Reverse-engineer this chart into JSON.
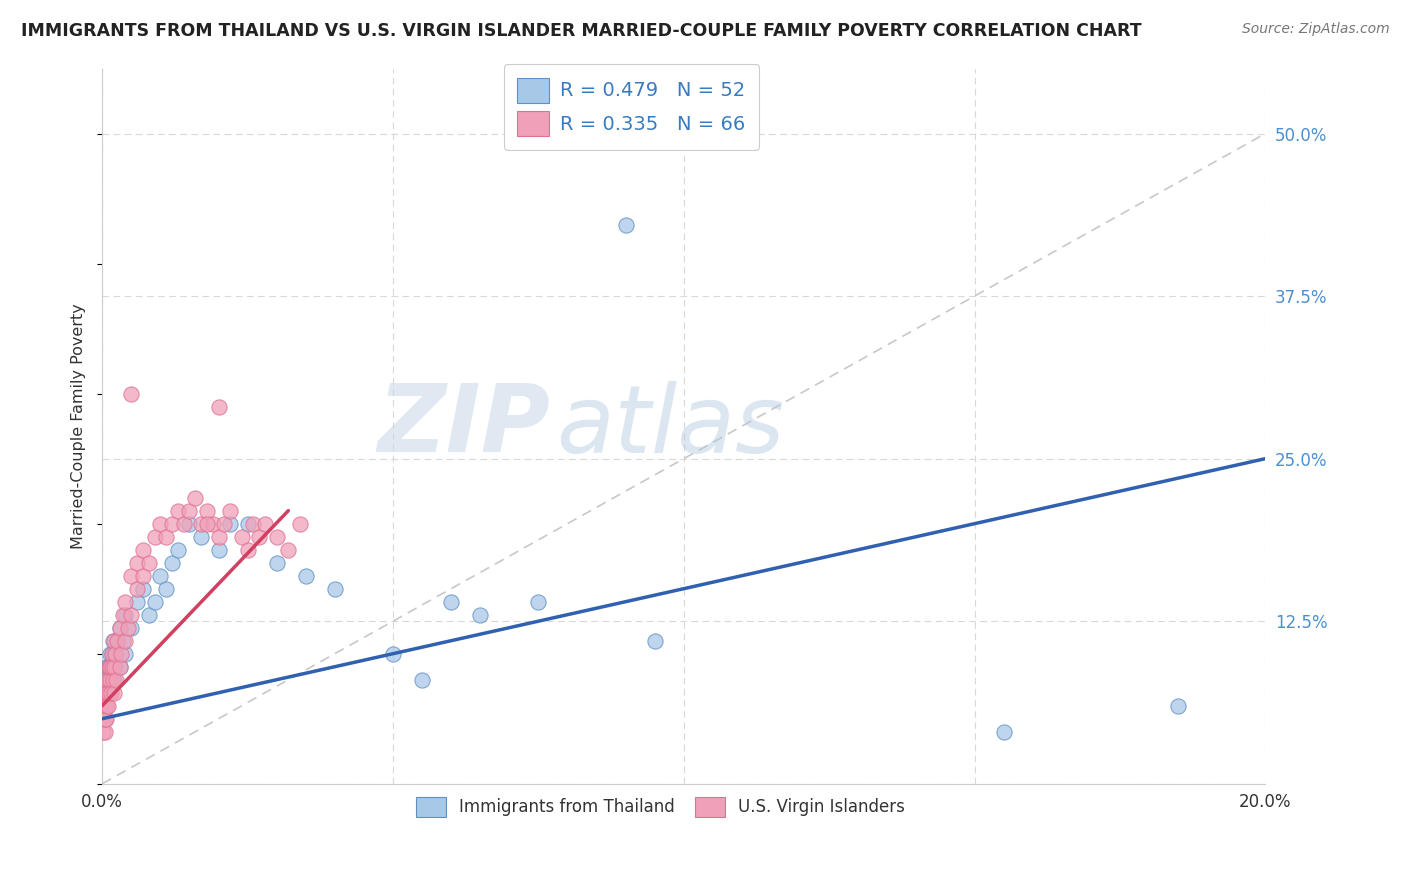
{
  "title": "IMMIGRANTS FROM THAILAND VS U.S. VIRGIN ISLANDER MARRIED-COUPLE FAMILY POVERTY CORRELATION CHART",
  "source": "Source: ZipAtlas.com",
  "ylabel": "Married-Couple Family Poverty",
  "xlim": [
    0.0,
    0.2
  ],
  "ylim": [
    0.0,
    0.55
  ],
  "grid_color": "#d8d8d8",
  "blue_color": "#a8c8e8",
  "pink_color": "#f0a0b8",
  "blue_edge_color": "#6090c0",
  "pink_edge_color": "#e07090",
  "blue_line_color": "#3060b0",
  "pink_line_color": "#d04060",
  "ref_line_color": "#c8c8c8",
  "watermark_zip": "ZIP",
  "watermark_atlas": "atlas",
  "legend_label_1": "Immigrants from Thailand",
  "legend_label_2": "U.S. Virgin Islanders",
  "blue_scatter_x": [
    0.0003,
    0.0004,
    0.0005,
    0.0006,
    0.0007,
    0.0008,
    0.0009,
    0.001,
    0.001,
    0.0012,
    0.0013,
    0.0014,
    0.0015,
    0.0016,
    0.0017,
    0.0018,
    0.002,
    0.002,
    0.0022,
    0.0024,
    0.0025,
    0.003,
    0.003,
    0.0035,
    0.004,
    0.004,
    0.005,
    0.006,
    0.007,
    0.008,
    0.009,
    0.01,
    0.011,
    0.012,
    0.013,
    0.015,
    0.017,
    0.02,
    0.022,
    0.025,
    0.03,
    0.035,
    0.04,
    0.05,
    0.055,
    0.06,
    0.065,
    0.075,
    0.09,
    0.095,
    0.155,
    0.185
  ],
  "blue_scatter_y": [
    0.06,
    0.07,
    0.05,
    0.08,
    0.09,
    0.07,
    0.08,
    0.07,
    0.09,
    0.08,
    0.1,
    0.09,
    0.08,
    0.1,
    0.09,
    0.11,
    0.08,
    0.1,
    0.09,
    0.1,
    0.11,
    0.09,
    0.12,
    0.11,
    0.1,
    0.13,
    0.12,
    0.14,
    0.15,
    0.13,
    0.14,
    0.16,
    0.15,
    0.17,
    0.18,
    0.2,
    0.19,
    0.18,
    0.2,
    0.2,
    0.17,
    0.16,
    0.15,
    0.1,
    0.08,
    0.14,
    0.13,
    0.14,
    0.43,
    0.11,
    0.04,
    0.06
  ],
  "pink_scatter_x": [
    0.0002,
    0.0003,
    0.0003,
    0.0004,
    0.0005,
    0.0005,
    0.0006,
    0.0007,
    0.0007,
    0.0008,
    0.0009,
    0.001,
    0.001,
    0.0011,
    0.0012,
    0.0013,
    0.0014,
    0.0015,
    0.0016,
    0.0017,
    0.0018,
    0.002,
    0.002,
    0.0021,
    0.0022,
    0.0024,
    0.0025,
    0.003,
    0.003,
    0.0032,
    0.0035,
    0.004,
    0.004,
    0.0045,
    0.005,
    0.005,
    0.006,
    0.006,
    0.007,
    0.007,
    0.008,
    0.009,
    0.01,
    0.011,
    0.012,
    0.013,
    0.014,
    0.015,
    0.016,
    0.017,
    0.018,
    0.019,
    0.02,
    0.021,
    0.022,
    0.024,
    0.025,
    0.026,
    0.027,
    0.028,
    0.03,
    0.032,
    0.034,
    0.02,
    0.018,
    0.005
  ],
  "pink_scatter_y": [
    0.04,
    0.05,
    0.06,
    0.04,
    0.05,
    0.07,
    0.06,
    0.05,
    0.08,
    0.06,
    0.07,
    0.06,
    0.08,
    0.07,
    0.09,
    0.08,
    0.09,
    0.07,
    0.1,
    0.09,
    0.08,
    0.07,
    0.11,
    0.09,
    0.1,
    0.08,
    0.11,
    0.09,
    0.12,
    0.1,
    0.13,
    0.11,
    0.14,
    0.12,
    0.13,
    0.16,
    0.15,
    0.17,
    0.16,
    0.18,
    0.17,
    0.19,
    0.2,
    0.19,
    0.2,
    0.21,
    0.2,
    0.21,
    0.22,
    0.2,
    0.21,
    0.2,
    0.19,
    0.2,
    0.21,
    0.19,
    0.18,
    0.2,
    0.19,
    0.2,
    0.19,
    0.18,
    0.2,
    0.29,
    0.2,
    0.3
  ],
  "blue_line_x0": 0.0,
  "blue_line_y0": 0.05,
  "blue_line_x1": 0.2,
  "blue_line_y1": 0.25,
  "pink_line_x0": 0.0,
  "pink_line_y0": 0.06,
  "pink_line_x1": 0.032,
  "pink_line_y1": 0.21
}
